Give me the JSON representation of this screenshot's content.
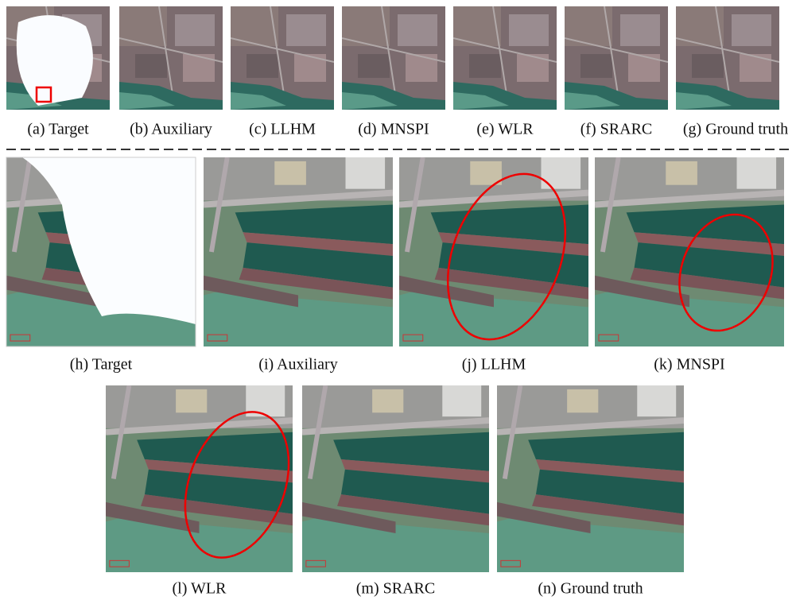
{
  "panels": [
    {
      "caption": "(a) Target"
    },
    {
      "caption": "(b) Auxiliary"
    },
    {
      "caption": "(c) LLHM"
    },
    {
      "caption": "(d) MNSPI"
    },
    {
      "caption": "(e) WLR"
    },
    {
      "caption": "(f) SRARC"
    },
    {
      "caption": "(g) Ground truth"
    },
    {
      "caption": "(h) Target"
    },
    {
      "caption": "(i) Auxiliary"
    },
    {
      "caption": "(j) LLHM"
    },
    {
      "caption": "(k) MNSPI"
    },
    {
      "caption": "(l) WLR"
    },
    {
      "caption": "(m) SRARC"
    },
    {
      "caption": "(n) Ground truth"
    }
  ]
}
